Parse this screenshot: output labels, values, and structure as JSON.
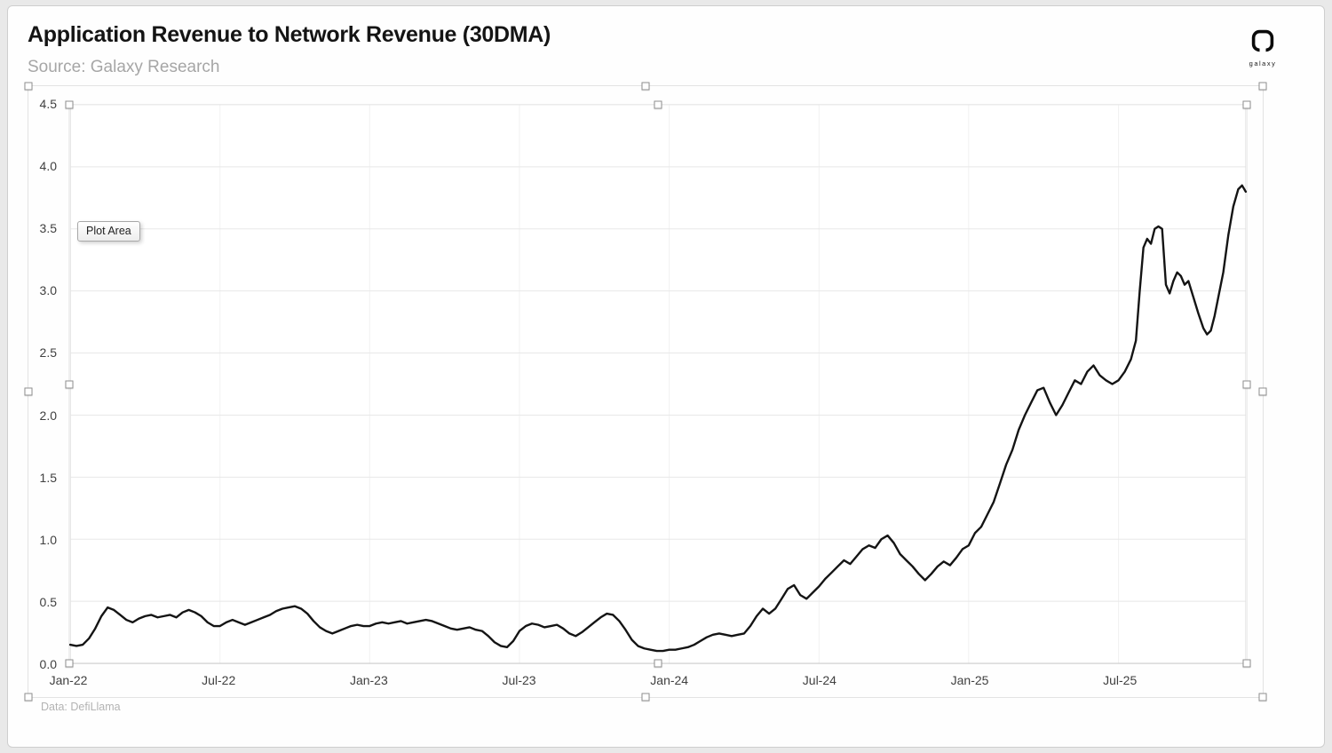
{
  "header": {
    "title": "Application Revenue to Network Revenue (30DMA)",
    "source": "Source: Galaxy Research",
    "logo_text": "galaxy"
  },
  "tooltip": {
    "label": "Plot Area"
  },
  "footer": {
    "attribution": "Data: DefiLlama"
  },
  "chart_data": {
    "type": "line",
    "title": "Application Revenue to Network Revenue (30DMA)",
    "subtitle": "Source: Galaxy Research",
    "attribution": "Data: DefiLlama",
    "xlabel": "",
    "ylabel": "",
    "grid": true,
    "legend": "none",
    "background": "#ffffff",
    "line_color": "#141414",
    "x_unit": "months since Jan-2022",
    "x_range": [
      0,
      47.1
    ],
    "ylim": [
      0,
      4.5
    ],
    "x_ticks": [
      {
        "pos": 0,
        "label": "Jan-22"
      },
      {
        "pos": 6,
        "label": "Jul-22"
      },
      {
        "pos": 12,
        "label": "Jan-23"
      },
      {
        "pos": 18,
        "label": "Jul-23"
      },
      {
        "pos": 24,
        "label": "Jan-24"
      },
      {
        "pos": 30,
        "label": "Jul-24"
      },
      {
        "pos": 36,
        "label": "Jan-25"
      },
      {
        "pos": 42,
        "label": "Jul-25"
      }
    ],
    "y_ticks": [
      {
        "pos": 0,
        "label": "0.0"
      },
      {
        "pos": 0.5,
        "label": "0.5"
      },
      {
        "pos": 1,
        "label": "1.0"
      },
      {
        "pos": 1.5,
        "label": "1.5"
      },
      {
        "pos": 2,
        "label": "2.0"
      },
      {
        "pos": 2.5,
        "label": "2.5"
      },
      {
        "pos": 3,
        "label": "3.0"
      },
      {
        "pos": 3.5,
        "label": "3.5"
      },
      {
        "pos": 4,
        "label": "4.0"
      },
      {
        "pos": 4.5,
        "label": "4.5"
      }
    ],
    "series": [
      {
        "name": "Application Revenue to Network Revenue (30DMA)",
        "points": [
          [
            0,
            0.15
          ],
          [
            0.25,
            0.14
          ],
          [
            0.5,
            0.15
          ],
          [
            0.75,
            0.2
          ],
          [
            1,
            0.28
          ],
          [
            1.25,
            0.38
          ],
          [
            1.5,
            0.45
          ],
          [
            1.75,
            0.43
          ],
          [
            2,
            0.39
          ],
          [
            2.25,
            0.35
          ],
          [
            2.5,
            0.33
          ],
          [
            2.75,
            0.36
          ],
          [
            3,
            0.38
          ],
          [
            3.25,
            0.39
          ],
          [
            3.5,
            0.37
          ],
          [
            3.75,
            0.38
          ],
          [
            4,
            0.39
          ],
          [
            4.25,
            0.37
          ],
          [
            4.5,
            0.41
          ],
          [
            4.75,
            0.43
          ],
          [
            5,
            0.41
          ],
          [
            5.25,
            0.38
          ],
          [
            5.5,
            0.33
          ],
          [
            5.75,
            0.3
          ],
          [
            6,
            0.3
          ],
          [
            6.25,
            0.33
          ],
          [
            6.5,
            0.35
          ],
          [
            6.75,
            0.33
          ],
          [
            7,
            0.31
          ],
          [
            7.25,
            0.33
          ],
          [
            7.5,
            0.35
          ],
          [
            7.75,
            0.37
          ],
          [
            8,
            0.39
          ],
          [
            8.25,
            0.42
          ],
          [
            8.5,
            0.44
          ],
          [
            8.75,
            0.45
          ],
          [
            9,
            0.46
          ],
          [
            9.25,
            0.44
          ],
          [
            9.5,
            0.4
          ],
          [
            9.75,
            0.34
          ],
          [
            10,
            0.29
          ],
          [
            10.25,
            0.26
          ],
          [
            10.5,
            0.24
          ],
          [
            10.75,
            0.26
          ],
          [
            11,
            0.28
          ],
          [
            11.25,
            0.3
          ],
          [
            11.5,
            0.31
          ],
          [
            11.75,
            0.3
          ],
          [
            12,
            0.3
          ],
          [
            12.25,
            0.32
          ],
          [
            12.5,
            0.33
          ],
          [
            12.75,
            0.32
          ],
          [
            13,
            0.33
          ],
          [
            13.25,
            0.34
          ],
          [
            13.5,
            0.32
          ],
          [
            13.75,
            0.33
          ],
          [
            14,
            0.34
          ],
          [
            14.25,
            0.35
          ],
          [
            14.5,
            0.34
          ],
          [
            14.75,
            0.32
          ],
          [
            15,
            0.3
          ],
          [
            15.25,
            0.28
          ],
          [
            15.5,
            0.27
          ],
          [
            15.75,
            0.28
          ],
          [
            16,
            0.29
          ],
          [
            16.25,
            0.27
          ],
          [
            16.5,
            0.26
          ],
          [
            16.75,
            0.22
          ],
          [
            17,
            0.17
          ],
          [
            17.25,
            0.14
          ],
          [
            17.5,
            0.13
          ],
          [
            17.75,
            0.18
          ],
          [
            18,
            0.26
          ],
          [
            18.25,
            0.3
          ],
          [
            18.5,
            0.32
          ],
          [
            18.75,
            0.31
          ],
          [
            19,
            0.29
          ],
          [
            19.25,
            0.3
          ],
          [
            19.5,
            0.31
          ],
          [
            19.75,
            0.28
          ],
          [
            20,
            0.24
          ],
          [
            20.25,
            0.22
          ],
          [
            20.5,
            0.25
          ],
          [
            20.75,
            0.29
          ],
          [
            21,
            0.33
          ],
          [
            21.25,
            0.37
          ],
          [
            21.5,
            0.4
          ],
          [
            21.75,
            0.39
          ],
          [
            22,
            0.34
          ],
          [
            22.25,
            0.27
          ],
          [
            22.5,
            0.19
          ],
          [
            22.75,
            0.14
          ],
          [
            23,
            0.12
          ],
          [
            23.25,
            0.11
          ],
          [
            23.5,
            0.1
          ],
          [
            23.75,
            0.1
          ],
          [
            24,
            0.11
          ],
          [
            24.25,
            0.11
          ],
          [
            24.5,
            0.12
          ],
          [
            24.75,
            0.13
          ],
          [
            25,
            0.15
          ],
          [
            25.25,
            0.18
          ],
          [
            25.5,
            0.21
          ],
          [
            25.75,
            0.23
          ],
          [
            26,
            0.24
          ],
          [
            26.25,
            0.23
          ],
          [
            26.5,
            0.22
          ],
          [
            26.75,
            0.23
          ],
          [
            27,
            0.24
          ],
          [
            27.25,
            0.3
          ],
          [
            27.5,
            0.38
          ],
          [
            27.75,
            0.44
          ],
          [
            28,
            0.4
          ],
          [
            28.25,
            0.44
          ],
          [
            28.5,
            0.52
          ],
          [
            28.75,
            0.6
          ],
          [
            29,
            0.63
          ],
          [
            29.25,
            0.55
          ],
          [
            29.5,
            0.52
          ],
          [
            29.75,
            0.57
          ],
          [
            30,
            0.62
          ],
          [
            30.25,
            0.68
          ],
          [
            30.5,
            0.73
          ],
          [
            30.75,
            0.78
          ],
          [
            31,
            0.83
          ],
          [
            31.25,
            0.8
          ],
          [
            31.5,
            0.86
          ],
          [
            31.75,
            0.92
          ],
          [
            32,
            0.95
          ],
          [
            32.25,
            0.93
          ],
          [
            32.5,
            1.0
          ],
          [
            32.75,
            1.03
          ],
          [
            33,
            0.97
          ],
          [
            33.25,
            0.88
          ],
          [
            33.5,
            0.83
          ],
          [
            33.75,
            0.78
          ],
          [
            34,
            0.72
          ],
          [
            34.25,
            0.67
          ],
          [
            34.5,
            0.72
          ],
          [
            34.75,
            0.78
          ],
          [
            35,
            0.82
          ],
          [
            35.25,
            0.79
          ],
          [
            35.5,
            0.85
          ],
          [
            35.75,
            0.92
          ],
          [
            36,
            0.95
          ],
          [
            36.25,
            1.05
          ],
          [
            36.5,
            1.1
          ],
          [
            36.75,
            1.2
          ],
          [
            37,
            1.3
          ],
          [
            37.25,
            1.45
          ],
          [
            37.5,
            1.6
          ],
          [
            37.75,
            1.72
          ],
          [
            38,
            1.88
          ],
          [
            38.25,
            2.0
          ],
          [
            38.5,
            2.1
          ],
          [
            38.75,
            2.2
          ],
          [
            39,
            2.22
          ],
          [
            39.25,
            2.1
          ],
          [
            39.5,
            2.0
          ],
          [
            39.75,
            2.08
          ],
          [
            40,
            2.18
          ],
          [
            40.25,
            2.28
          ],
          [
            40.5,
            2.25
          ],
          [
            40.75,
            2.35
          ],
          [
            41,
            2.4
          ],
          [
            41.25,
            2.32
          ],
          [
            41.5,
            2.28
          ],
          [
            41.75,
            2.25
          ],
          [
            42,
            2.28
          ],
          [
            42.25,
            2.35
          ],
          [
            42.5,
            2.45
          ],
          [
            42.7,
            2.6
          ],
          [
            42.85,
            3.0
          ],
          [
            43,
            3.35
          ],
          [
            43.15,
            3.42
          ],
          [
            43.3,
            3.38
          ],
          [
            43.45,
            3.5
          ],
          [
            43.6,
            3.52
          ],
          [
            43.75,
            3.5
          ],
          [
            43.9,
            3.05
          ],
          [
            44.05,
            2.98
          ],
          [
            44.2,
            3.08
          ],
          [
            44.35,
            3.15
          ],
          [
            44.5,
            3.12
          ],
          [
            44.65,
            3.05
          ],
          [
            44.8,
            3.08
          ],
          [
            45,
            2.95
          ],
          [
            45.2,
            2.82
          ],
          [
            45.4,
            2.7
          ],
          [
            45.55,
            2.65
          ],
          [
            45.7,
            2.68
          ],
          [
            45.85,
            2.8
          ],
          [
            46,
            2.95
          ],
          [
            46.2,
            3.15
          ],
          [
            46.4,
            3.45
          ],
          [
            46.6,
            3.68
          ],
          [
            46.8,
            3.82
          ],
          [
            46.95,
            3.85
          ],
          [
            47.1,
            3.8
          ]
        ]
      }
    ]
  }
}
